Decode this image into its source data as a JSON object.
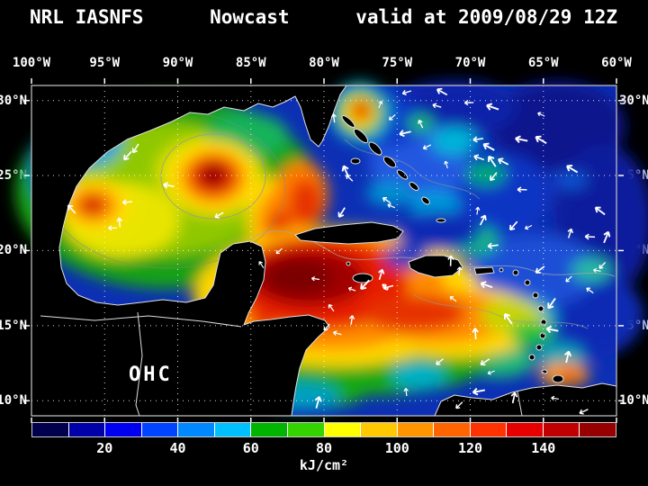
{
  "title": {
    "left": "NRL IASNFS",
    "center": "Nowcast",
    "right": "valid at 2009/08/29 12Z"
  },
  "axes": {
    "lon_ticks": [
      "100°W",
      "95°W",
      "90°W",
      "85°W",
      "80°W",
      "75°W",
      "70°W",
      "65°W",
      "60°W"
    ],
    "lat_ticks": [
      "30°N",
      "25°N",
      "20°N",
      "15°N",
      "10°N"
    ]
  },
  "map": {
    "ohc_label": "OHC"
  },
  "colorbar": {
    "label": "kJ/cm²",
    "tick_labels": [
      "20",
      "40",
      "60",
      "80",
      "100",
      "120",
      "140"
    ],
    "colors": [
      "#00004d",
      "#0000a8",
      "#0000f0",
      "#0044ff",
      "#0088ff",
      "#00c0ff",
      "#00b400",
      "#33d400",
      "#ffff00",
      "#ffc800",
      "#ff9600",
      "#ff6400",
      "#ff3200",
      "#e60000",
      "#c00000",
      "#960000"
    ]
  }
}
